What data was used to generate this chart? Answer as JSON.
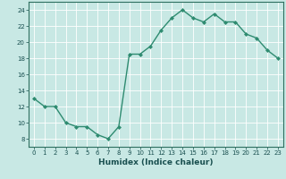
{
  "x": [
    0,
    1,
    2,
    3,
    4,
    5,
    6,
    7,
    8,
    9,
    10,
    11,
    12,
    13,
    14,
    15,
    16,
    17,
    18,
    19,
    20,
    21,
    22,
    23
  ],
  "y": [
    13,
    12,
    12,
    10,
    9.5,
    9.5,
    8.5,
    8,
    9.5,
    18.5,
    18.5,
    19.5,
    21.5,
    23,
    24,
    23,
    22.5,
    23.5,
    22.5,
    22.5,
    21,
    20.5,
    19,
    18
  ],
  "title": "",
  "xlabel": "Humidex (Indice chaleur)",
  "ylabel": "",
  "xlim": [
    -0.5,
    23.5
  ],
  "ylim": [
    7,
    25
  ],
  "yticks": [
    8,
    10,
    12,
    14,
    16,
    18,
    20,
    22,
    24
  ],
  "xticks": [
    0,
    1,
    2,
    3,
    4,
    5,
    6,
    7,
    8,
    9,
    10,
    11,
    12,
    13,
    14,
    15,
    16,
    17,
    18,
    19,
    20,
    21,
    22,
    23
  ],
  "line_color": "#2e8b70",
  "marker": "D",
  "marker_size": 2.0,
  "bg_color": "#c8e8e4",
  "grid_color": "#ffffff",
  "spine_color": "#2e7060",
  "label_color": "#1a5050",
  "tick_color": "#1a5050",
  "xlabel_fontsize": 6.5,
  "tick_fontsize": 5.0,
  "linewidth": 1.0
}
